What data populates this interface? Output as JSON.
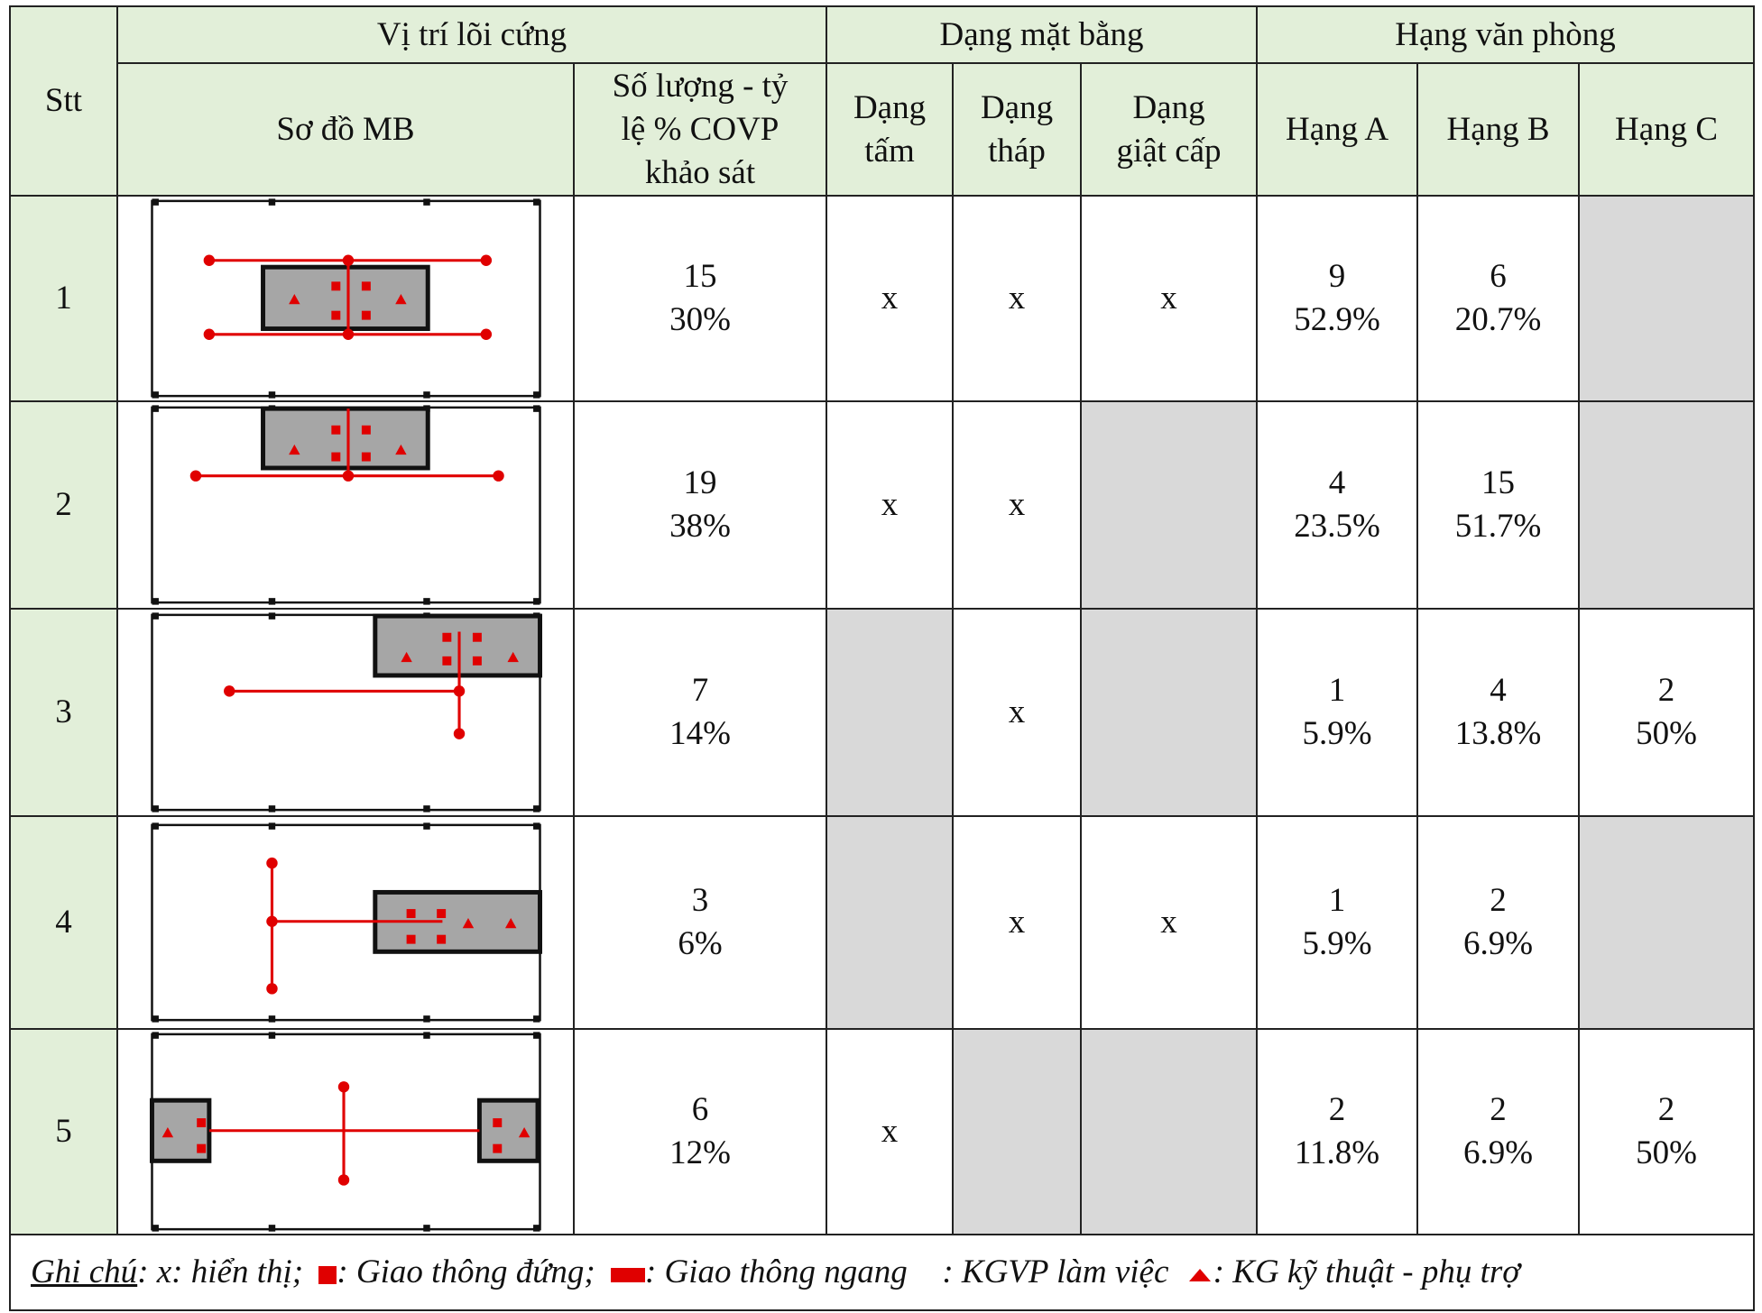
{
  "table": {
    "header": {
      "stt": "Stt",
      "core_position": "Vị trí lõi cứng",
      "plan_type": "Dạng mặt bằng",
      "office_grade": "Hạng văn phòng",
      "diagram": "Sơ đồ MB",
      "count": "Số lượng - tỷ\nlệ % COVP\nkhảo sát",
      "slab": "Dạng\ntấm",
      "tower": "Dạng\ntháp",
      "stepped": "Dạng\ngiật cấp",
      "grade_a": "Hạng A",
      "grade_b": "Hạng B",
      "grade_c": "Hạng C"
    },
    "rows": [
      {
        "stt": "1",
        "count": "15",
        "percent": "30%",
        "slab": "x",
        "tower": "x",
        "stepped": "x",
        "grade_a": {
          "count": "9",
          "percent": "52.9%"
        },
        "grade_b": {
          "count": "6",
          "percent": "20.7%"
        },
        "grade_c": null
      },
      {
        "stt": "2",
        "count": "19",
        "percent": "38%",
        "slab": "x",
        "tower": "x",
        "stepped": null,
        "grade_a": {
          "count": "4",
          "percent": "23.5%"
        },
        "grade_b": {
          "count": "15",
          "percent": "51.7%"
        },
        "grade_c": null
      },
      {
        "stt": "3",
        "count": "7",
        "percent": "14%",
        "slab": null,
        "tower": "x",
        "stepped": null,
        "grade_a": {
          "count": "1",
          "percent": "5.9%"
        },
        "grade_b": {
          "count": "4",
          "percent": "13.8%"
        },
        "grade_c": {
          "count": "2",
          "percent": "50%"
        }
      },
      {
        "stt": "4",
        "count": "3",
        "percent": "6%",
        "slab": null,
        "tower": "x",
        "stepped": "x",
        "grade_a": {
          "count": "1",
          "percent": "5.9%"
        },
        "grade_b": {
          "count": "2",
          "percent": "6.9%"
        },
        "grade_c": null
      },
      {
        "stt": "5",
        "count": "6",
        "percent": "12%",
        "slab": "x",
        "tower": null,
        "stepped": null,
        "grade_a": {
          "count": "2",
          "percent": "11.8%"
        },
        "grade_b": {
          "count": "2",
          "percent": "6.9%"
        },
        "grade_c": {
          "count": "2",
          "percent": "50%"
        }
      }
    ]
  },
  "note": {
    "label": "Ghi chú",
    "parts": [
      ": x: hiển thị;",
      ": Giao thông đứng;",
      ": Giao thông ngang",
      " : KGVP làm việc",
      ": KG kỹ thuật - phụ trợ"
    ]
  }
}
